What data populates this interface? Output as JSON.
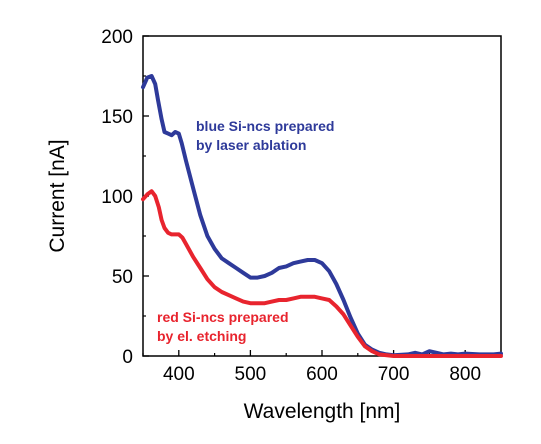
{
  "chart_data": {
    "type": "line",
    "xlabel": "Wavelength [nm]",
    "ylabel": "Current [nA]",
    "xlim": [
      350,
      850
    ],
    "ylim": [
      0,
      200
    ],
    "x_ticks": [
      "400",
      "500",
      "600",
      "700",
      "800"
    ],
    "y_ticks": [
      "0",
      "50",
      "100",
      "150",
      "200"
    ],
    "grid": false,
    "legend": "none",
    "series": [
      {
        "color": "#2e3a9a",
        "points": [
          [
            350,
            168
          ],
          [
            356,
            174
          ],
          [
            362,
            175
          ],
          [
            367,
            170
          ],
          [
            371,
            160
          ],
          [
            376,
            148
          ],
          [
            380,
            140
          ],
          [
            385,
            139
          ],
          [
            390,
            138
          ],
          [
            395,
            140
          ],
          [
            400,
            139
          ],
          [
            404,
            133
          ],
          [
            410,
            122
          ],
          [
            420,
            105
          ],
          [
            430,
            88
          ],
          [
            440,
            75
          ],
          [
            450,
            67
          ],
          [
            460,
            61
          ],
          [
            470,
            58
          ],
          [
            480,
            55
          ],
          [
            490,
            52
          ],
          [
            500,
            49
          ],
          [
            510,
            49
          ],
          [
            520,
            50
          ],
          [
            530,
            52
          ],
          [
            540,
            55
          ],
          [
            550,
            56
          ],
          [
            560,
            58
          ],
          [
            570,
            59
          ],
          [
            580,
            60
          ],
          [
            590,
            60
          ],
          [
            600,
            58
          ],
          [
            610,
            53
          ],
          [
            620,
            45
          ],
          [
            630,
            35
          ],
          [
            640,
            24
          ],
          [
            650,
            14
          ],
          [
            660,
            7
          ],
          [
            670,
            4
          ],
          [
            680,
            2
          ],
          [
            690,
            1
          ],
          [
            700,
            0.5
          ],
          [
            720,
            1
          ],
          [
            730,
            2
          ],
          [
            740,
            1
          ],
          [
            750,
            3
          ],
          [
            760,
            2
          ],
          [
            770,
            1
          ],
          [
            780,
            1.5
          ],
          [
            790,
            1
          ],
          [
            800,
            1.5
          ],
          [
            820,
            1
          ],
          [
            840,
            1
          ],
          [
            850,
            1.5
          ]
        ]
      },
      {
        "color": "#e8242e",
        "points": [
          [
            350,
            98
          ],
          [
            356,
            101
          ],
          [
            362,
            103
          ],
          [
            367,
            100
          ],
          [
            372,
            93
          ],
          [
            376,
            85
          ],
          [
            380,
            80
          ],
          [
            385,
            77
          ],
          [
            390,
            76
          ],
          [
            395,
            76
          ],
          [
            400,
            76
          ],
          [
            405,
            74
          ],
          [
            410,
            70
          ],
          [
            420,
            62
          ],
          [
            430,
            55
          ],
          [
            440,
            48
          ],
          [
            450,
            43
          ],
          [
            460,
            40
          ],
          [
            470,
            38
          ],
          [
            480,
            36
          ],
          [
            490,
            34
          ],
          [
            500,
            33
          ],
          [
            510,
            33
          ],
          [
            520,
            33
          ],
          [
            530,
            34
          ],
          [
            540,
            35
          ],
          [
            550,
            35
          ],
          [
            560,
            36
          ],
          [
            570,
            37
          ],
          [
            580,
            37
          ],
          [
            590,
            37
          ],
          [
            600,
            36
          ],
          [
            610,
            35
          ],
          [
            620,
            31
          ],
          [
            630,
            26
          ],
          [
            640,
            19
          ],
          [
            650,
            12
          ],
          [
            660,
            6
          ],
          [
            670,
            3
          ],
          [
            680,
            1
          ],
          [
            700,
            0
          ],
          [
            850,
            0
          ]
        ]
      }
    ],
    "annotations": [
      {
        "lines": [
          "blue Si-ncs prepared",
          "by laser ablation"
        ],
        "color": "#2e3a9a"
      },
      {
        "lines": [
          "red Si-ncs prepared",
          "by el. etching"
        ],
        "color": "#e8242e"
      }
    ]
  }
}
